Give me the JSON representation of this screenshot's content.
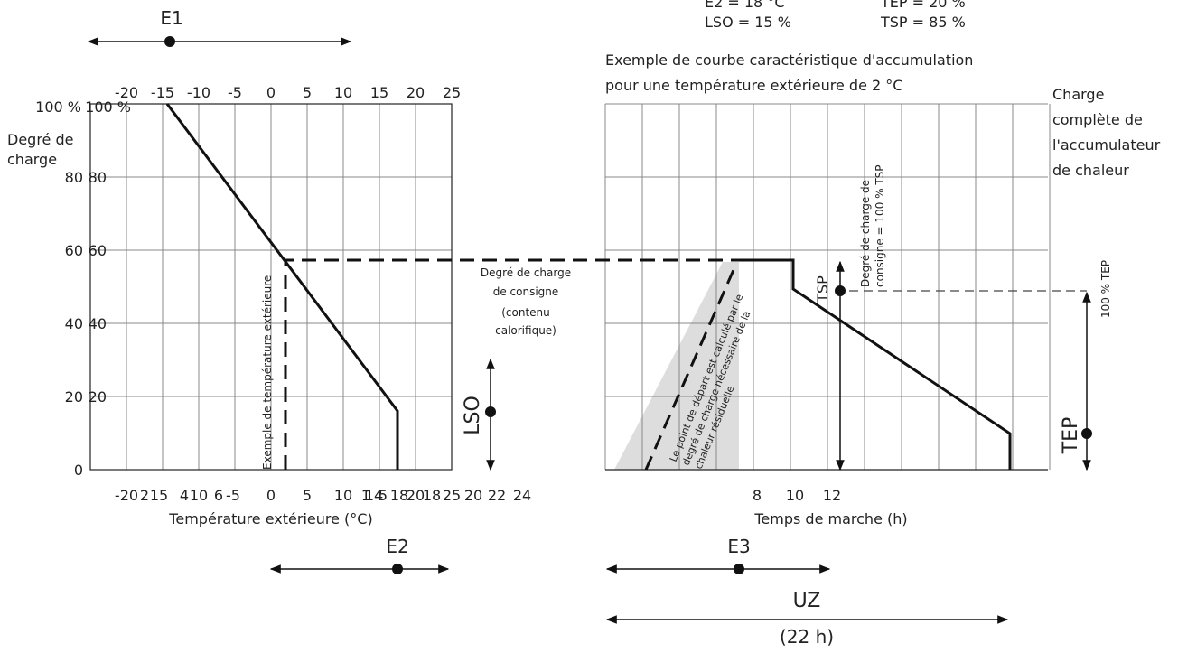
{
  "header": {
    "e2": "E2 = 18 °C",
    "tep": "TEP = 20 %",
    "lso": "LSO = 15 %",
    "tsp": "TSP = 85 %"
  },
  "left_chart": {
    "top_axis_labels": [
      "-20",
      "-15",
      "-10",
      "-5",
      "0",
      "5",
      "10",
      "15",
      "20",
      "25"
    ],
    "bottom_axis_labels": [
      "-20",
      "2",
      "15",
      "4",
      "10",
      "6",
      "-5",
      "0",
      "5",
      "10",
      "1",
      "14",
      "5",
      "18",
      "20",
      "18",
      "25",
      "20",
      "22",
      "24"
    ],
    "y_labels": [
      "100 %",
      "100 %",
      "80",
      "80",
      "60",
      "60",
      "40",
      "40",
      "20",
      "20",
      "0"
    ],
    "y_title": [
      "Degré de",
      "charge"
    ],
    "x_title": "Température extérieure (°C)",
    "dashed_label": "Exemple de température extérieure",
    "e1": "E1",
    "e2": "E2",
    "lso": "LSO",
    "consigne": [
      "Degré de charge",
      "de consigne",
      "(contenu",
      "calorifique)"
    ]
  },
  "right_chart": {
    "title": [
      "Exemple de courbe caractéristique d'accumulation",
      "pour une température extérieure de 2 °C"
    ],
    "side_title": [
      "Charge",
      "complète de",
      "l'accumulateur",
      "de chaleur"
    ],
    "x_labels": [
      "8",
      "10",
      "12"
    ],
    "x_title": "Temps de marche (h)",
    "start_note": [
      "Le point de départ est calculé par le",
      "degré de charge nécessaire de la",
      "chaleur résiduelle"
    ],
    "tsp": "TSP",
    "tsp_note": [
      "Degré de charge de",
      "consigne = 100 % TSP"
    ],
    "tep_note": "100 % TEP",
    "tep": "TEP",
    "e3": "E3",
    "uz": "UZ",
    "uz_hours": "(22 h)"
  }
}
